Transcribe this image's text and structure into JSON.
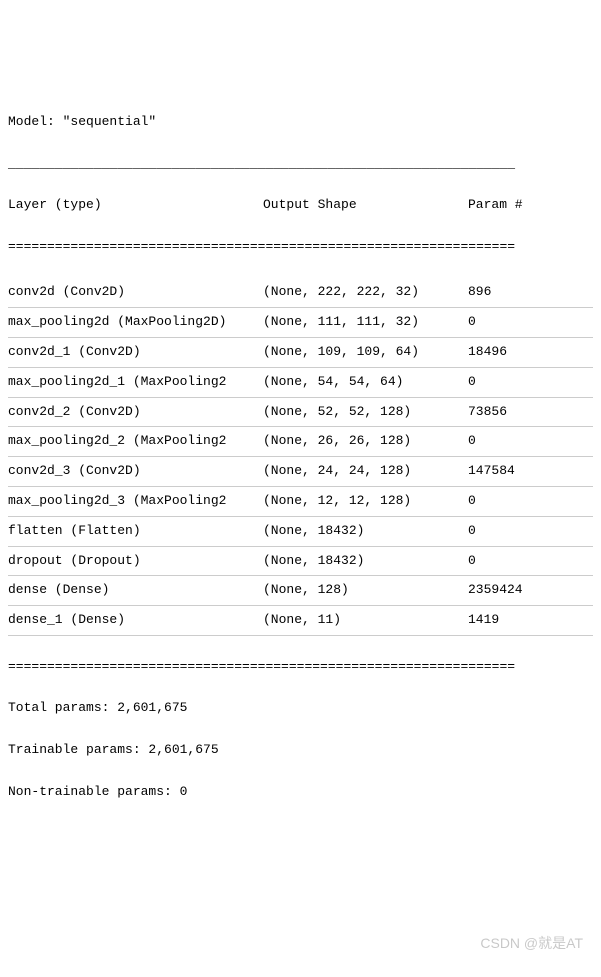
{
  "model_line": "Model: \"sequential\"",
  "header": {
    "c1": "Layer (type)",
    "c2": "Output Shape",
    "c3": "Param #"
  },
  "double_line": "=================================================================",
  "rows": [
    {
      "c1": "conv2d (Conv2D)",
      "c2": "(None, 222, 222, 32)",
      "c3": "896"
    },
    {
      "c1": "max_pooling2d (MaxPooling2D)",
      "c2": "(None, 111, 111, 32)",
      "c3": "0"
    },
    {
      "c1": "conv2d_1 (Conv2D)",
      "c2": "(None, 109, 109, 64)",
      "c3": "18496"
    },
    {
      "c1": "max_pooling2d_1 (MaxPooling2",
      "c2": "(None, 54, 54, 64)",
      "c3": "0"
    },
    {
      "c1": "conv2d_2 (Conv2D)",
      "c2": "(None, 52, 52, 128)",
      "c3": "73856"
    },
    {
      "c1": "max_pooling2d_2 (MaxPooling2",
      "c2": "(None, 26, 26, 128)",
      "c3": "0"
    },
    {
      "c1": "conv2d_3 (Conv2D)",
      "c2": "(None, 24, 24, 128)",
      "c3": "147584"
    },
    {
      "c1": "max_pooling2d_3 (MaxPooling2",
      "c2": "(None, 12, 12, 128)",
      "c3": "0"
    },
    {
      "c1": "flatten (Flatten)",
      "c2": "(None, 18432)",
      "c3": "0"
    },
    {
      "c1": "dropout (Dropout)",
      "c2": "(None, 18432)",
      "c3": "0"
    },
    {
      "c1": "dense (Dense)",
      "c2": "(None, 128)",
      "c3": "2359424"
    },
    {
      "c1": "dense_1 (Dense)",
      "c2": "(None, 11)",
      "c3": "1419"
    }
  ],
  "footer": [
    "Total params: 2,601,675",
    "Trainable params: 2,601,675",
    "Non-trainable params: 0"
  ],
  "watermark": "CSDN @就是AT"
}
